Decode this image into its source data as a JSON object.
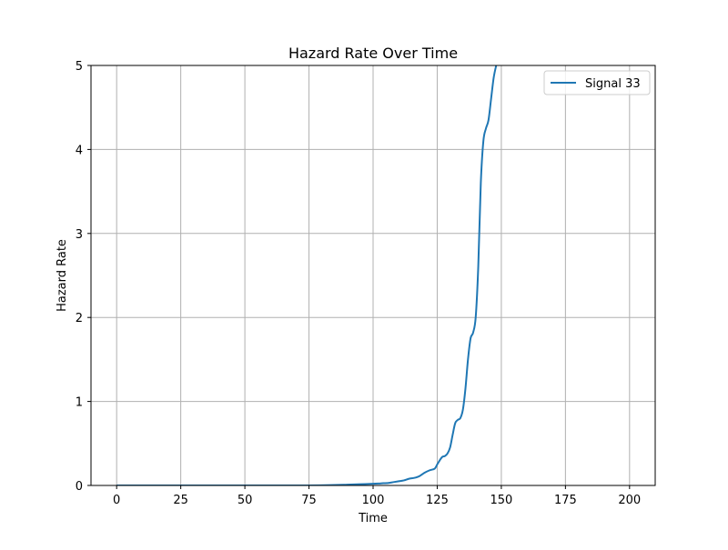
{
  "chart_data": {
    "type": "line",
    "title": "Hazard Rate Over Time",
    "xlabel": "Time",
    "ylabel": "Hazard Rate",
    "xlim": [
      -10,
      210
    ],
    "ylim": [
      0,
      5
    ],
    "xticks": [
      0,
      25,
      50,
      75,
      100,
      125,
      150,
      175,
      200
    ],
    "yticks": [
      0,
      1,
      2,
      3,
      4,
      5
    ],
    "grid": true,
    "legend_position": "top-right",
    "series": [
      {
        "name": "Signal 33",
        "color": "#1f77b4",
        "x": [
          0,
          25,
          50,
          75,
          85,
          90,
          95,
          100,
          103,
          106,
          108,
          110,
          112,
          114,
          116,
          118,
          120,
          122,
          124,
          125,
          126,
          127,
          128,
          129,
          130,
          131,
          132,
          133,
          134,
          135,
          136,
          137,
          138,
          139,
          140,
          141,
          142,
          143,
          144,
          145,
          146,
          147,
          148,
          148.5
        ],
        "y": [
          0.0,
          0.0,
          0.0,
          0.0,
          0.005,
          0.01,
          0.015,
          0.02,
          0.025,
          0.03,
          0.04,
          0.05,
          0.06,
          0.08,
          0.09,
          0.11,
          0.15,
          0.18,
          0.2,
          0.25,
          0.3,
          0.34,
          0.35,
          0.38,
          0.45,
          0.6,
          0.74,
          0.78,
          0.8,
          0.9,
          1.15,
          1.5,
          1.75,
          1.82,
          2.0,
          2.6,
          3.6,
          4.1,
          4.25,
          4.35,
          4.6,
          4.85,
          5.0,
          5.05
        ]
      }
    ]
  }
}
